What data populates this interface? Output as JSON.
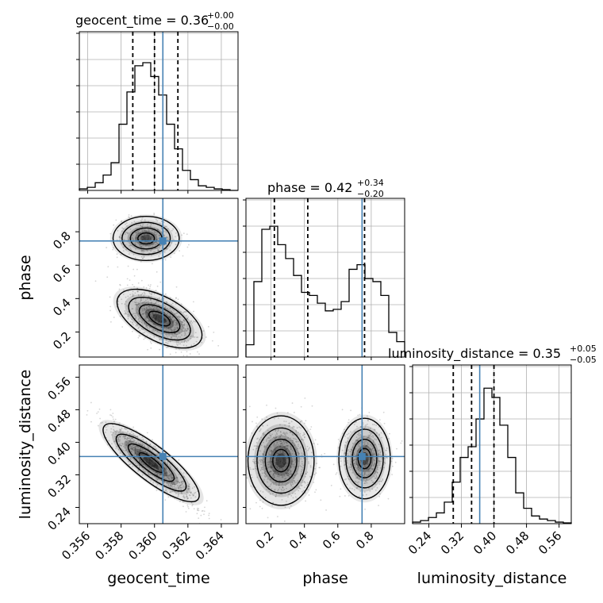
{
  "chart_data": {
    "type": "corner",
    "parameters": [
      "geocent_time",
      "phase",
      "luminosity_distance"
    ],
    "titles": [
      {
        "parameter": "geocent_time",
        "text": "geocent_time = 0.36",
        "sup": "+0.00",
        "sub": "−0.00"
      },
      {
        "parameter": "phase",
        "text": "phase = 0.42",
        "sup": "+0.34",
        "sub": "−0.20"
      },
      {
        "parameter": "luminosity_distance",
        "text": "luminosity_distance = 0.35",
        "sup": "+0.05",
        "sub": "−0.05"
      }
    ],
    "axis_labels": {
      "x": [
        "geocent_time",
        "phase",
        "luminosity_distance"
      ],
      "y": [
        "phase",
        "luminosity_distance"
      ]
    },
    "ranges": {
      "geocent_time": [
        0.3555,
        0.365
      ],
      "phase": [
        0.05,
        1.0
      ],
      "luminosity_distance": [
        0.2,
        0.59
      ]
    },
    "ticks": {
      "geocent_time": [
        "0.356",
        "0.358",
        "0.360",
        "0.362",
        "0.364"
      ],
      "phase": [
        "0.2",
        "0.4",
        "0.6",
        "0.8"
      ],
      "luminosity_distance": [
        "0.24",
        "0.32",
        "0.40",
        "0.48",
        "0.56"
      ]
    },
    "tick_values": {
      "geocent_time": [
        0.356,
        0.358,
        0.36,
        0.362,
        0.364
      ],
      "phase": [
        0.2,
        0.4,
        0.6,
        0.8
      ],
      "luminosity_distance": [
        0.24,
        0.32,
        0.4,
        0.48,
        0.56
      ]
    },
    "truths": {
      "geocent_time": 0.3605,
      "phase": 0.745,
      "luminosity_distance": 0.365
    },
    "quantiles": {
      "geocent_time": [
        0.3587,
        0.36,
        0.3614
      ],
      "phase": [
        0.22,
        0.42,
        0.76
      ],
      "luminosity_distance": [
        0.3,
        0.345,
        0.4
      ]
    },
    "histograms": {
      "geocent_time": {
        "range": [
          0.3555,
          0.365
        ],
        "counts": [
          0.01,
          0.02,
          0.05,
          0.1,
          0.18,
          0.43,
          0.64,
          0.81,
          0.83,
          0.74,
          0.62,
          0.43,
          0.27,
          0.13,
          0.07,
          0.03,
          0.02,
          0.01,
          0.005,
          0.0
        ]
      },
      "phase": {
        "range": [
          0.05,
          1.0
        ],
        "counts": [
          0.08,
          0.49,
          0.83,
          0.85,
          0.73,
          0.64,
          0.53,
          0.42,
          0.4,
          0.35,
          0.3,
          0.31,
          0.36,
          0.57,
          0.6,
          0.51,
          0.49,
          0.4,
          0.16,
          0.1
        ]
      },
      "luminosity_distance": {
        "range": [
          0.2,
          0.59
        ],
        "counts": [
          0.01,
          0.02,
          0.04,
          0.07,
          0.14,
          0.27,
          0.43,
          0.5,
          0.68,
          0.88,
          0.82,
          0.64,
          0.43,
          0.2,
          0.1,
          0.05,
          0.03,
          0.02,
          0.01,
          0.005
        ]
      }
    },
    "grid": true,
    "colors": {
      "truth": "#4682b4",
      "hist": "#000000",
      "grid": "#b0b0b0",
      "points": "#888888",
      "density": "#000000"
    }
  }
}
